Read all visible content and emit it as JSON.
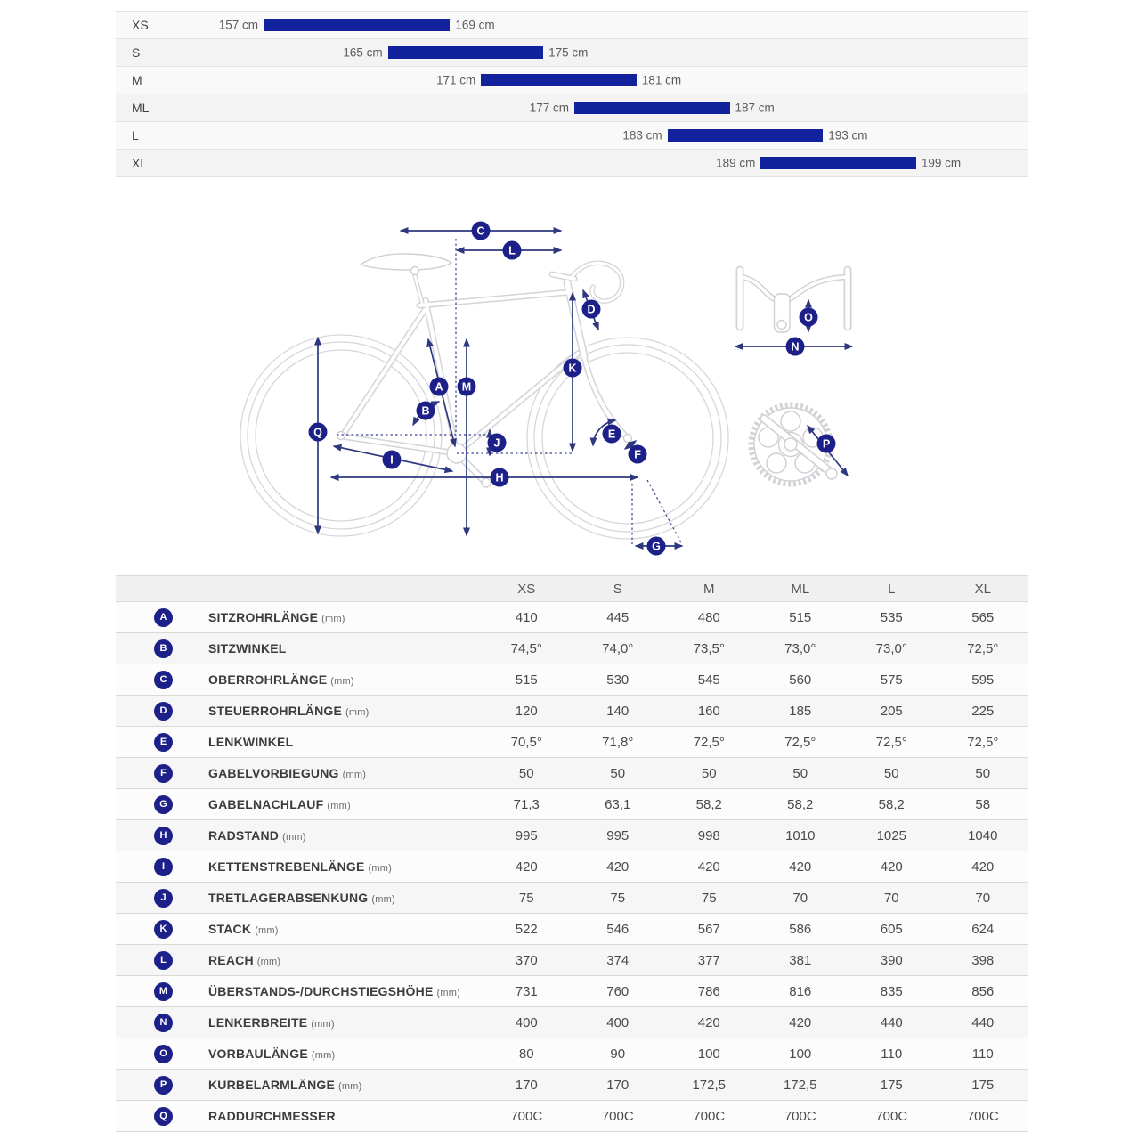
{
  "size_chart": {
    "unit": "cm",
    "scale": {
      "min_cm": 157,
      "max_cm": 199
    },
    "rows": [
      {
        "size": "XS",
        "min": 157,
        "max": 169,
        "min_label": "157 cm",
        "max_label": "169 cm"
      },
      {
        "size": "S",
        "min": 165,
        "max": 175,
        "min_label": "165 cm",
        "max_label": "175 cm"
      },
      {
        "size": "M",
        "min": 171,
        "max": 181,
        "min_label": "171 cm",
        "max_label": "181 cm"
      },
      {
        "size": "ML",
        "min": 177,
        "max": 187,
        "min_label": "177 cm",
        "max_label": "187 cm"
      },
      {
        "size": "L",
        "min": 183,
        "max": 193,
        "min_label": "183 cm",
        "max_label": "193 cm"
      },
      {
        "size": "XL",
        "min": 189,
        "max": 199,
        "min_label": "189 cm",
        "max_label": "199 cm"
      }
    ]
  },
  "diagram": {
    "labels": {
      "A": "A",
      "B": "B",
      "C": "C",
      "D": "D",
      "E": "E",
      "F": "F",
      "G": "G",
      "H": "H",
      "I": "I",
      "J": "J",
      "K": "K",
      "L": "L",
      "M": "M",
      "N": "N",
      "O": "O",
      "P": "P",
      "Q": "Q"
    }
  },
  "geometry_table": {
    "columns": [
      "XS",
      "S",
      "M",
      "ML",
      "L",
      "XL"
    ],
    "rows": [
      {
        "key": "A",
        "label": "SITZROHRLÄNGE",
        "unit": "(mm)",
        "values": [
          "410",
          "445",
          "480",
          "515",
          "535",
          "565"
        ]
      },
      {
        "key": "B",
        "label": "SITZWINKEL",
        "unit": "",
        "values": [
          "74,5°",
          "74,0°",
          "73,5°",
          "73,0°",
          "73,0°",
          "72,5°"
        ]
      },
      {
        "key": "C",
        "label": "OBERROHRLÄNGE",
        "unit": "(mm)",
        "values": [
          "515",
          "530",
          "545",
          "560",
          "575",
          "595"
        ]
      },
      {
        "key": "D",
        "label": "STEUERROHRLÄNGE",
        "unit": "(mm)",
        "values": [
          "120",
          "140",
          "160",
          "185",
          "205",
          "225"
        ]
      },
      {
        "key": "E",
        "label": "LENKWINKEL",
        "unit": "",
        "values": [
          "70,5°",
          "71,8°",
          "72,5°",
          "72,5°",
          "72,5°",
          "72,5°"
        ]
      },
      {
        "key": "F",
        "label": "GABELVORBIEGUNG",
        "unit": "(mm)",
        "values": [
          "50",
          "50",
          "50",
          "50",
          "50",
          "50"
        ]
      },
      {
        "key": "G",
        "label": "GABELNACHLAUF",
        "unit": "(mm)",
        "values": [
          "71,3",
          "63,1",
          "58,2",
          "58,2",
          "58,2",
          "58"
        ]
      },
      {
        "key": "H",
        "label": "RADSTAND",
        "unit": "(mm)",
        "values": [
          "995",
          "995",
          "998",
          "1010",
          "1025",
          "1040"
        ]
      },
      {
        "key": "I",
        "label": "KETTENSTREBENLÄNGE",
        "unit": "(mm)",
        "values": [
          "420",
          "420",
          "420",
          "420",
          "420",
          "420"
        ]
      },
      {
        "key": "J",
        "label": "TRETLAGERABSENKUNG",
        "unit": "(mm)",
        "values": [
          "75",
          "75",
          "75",
          "70",
          "70",
          "70"
        ]
      },
      {
        "key": "K",
        "label": "STACK",
        "unit": "(mm)",
        "values": [
          "522",
          "546",
          "567",
          "586",
          "605",
          "624"
        ]
      },
      {
        "key": "L",
        "label": "REACH",
        "unit": "(mm)",
        "values": [
          "370",
          "374",
          "377",
          "381",
          "390",
          "398"
        ]
      },
      {
        "key": "M",
        "label": "ÜBERSTANDS-/DURCHSTIEGSHÖHE",
        "unit": "(mm)",
        "values": [
          "731",
          "760",
          "786",
          "816",
          "835",
          "856"
        ]
      },
      {
        "key": "N",
        "label": "LENKERBREITE",
        "unit": "(mm)",
        "values": [
          "400",
          "400",
          "420",
          "420",
          "440",
          "440"
        ]
      },
      {
        "key": "O",
        "label": "VORBAULÄNGE",
        "unit": "(mm)",
        "values": [
          "80",
          "90",
          "100",
          "100",
          "110",
          "110"
        ]
      },
      {
        "key": "P",
        "label": "KURBELARMLÄNGE",
        "unit": "(mm)",
        "values": [
          "170",
          "170",
          "172,5",
          "172,5",
          "175",
          "175"
        ]
      },
      {
        "key": "Q",
        "label": "RADDURCHMESSER",
        "unit": "",
        "values": [
          "700C",
          "700C",
          "700C",
          "700C",
          "700C",
          "700C"
        ]
      }
    ]
  },
  "colors": {
    "bar": "#12219c",
    "badge": "#1c2088",
    "arrow": "#2e387e",
    "frame_line": "#d4d4d8"
  }
}
